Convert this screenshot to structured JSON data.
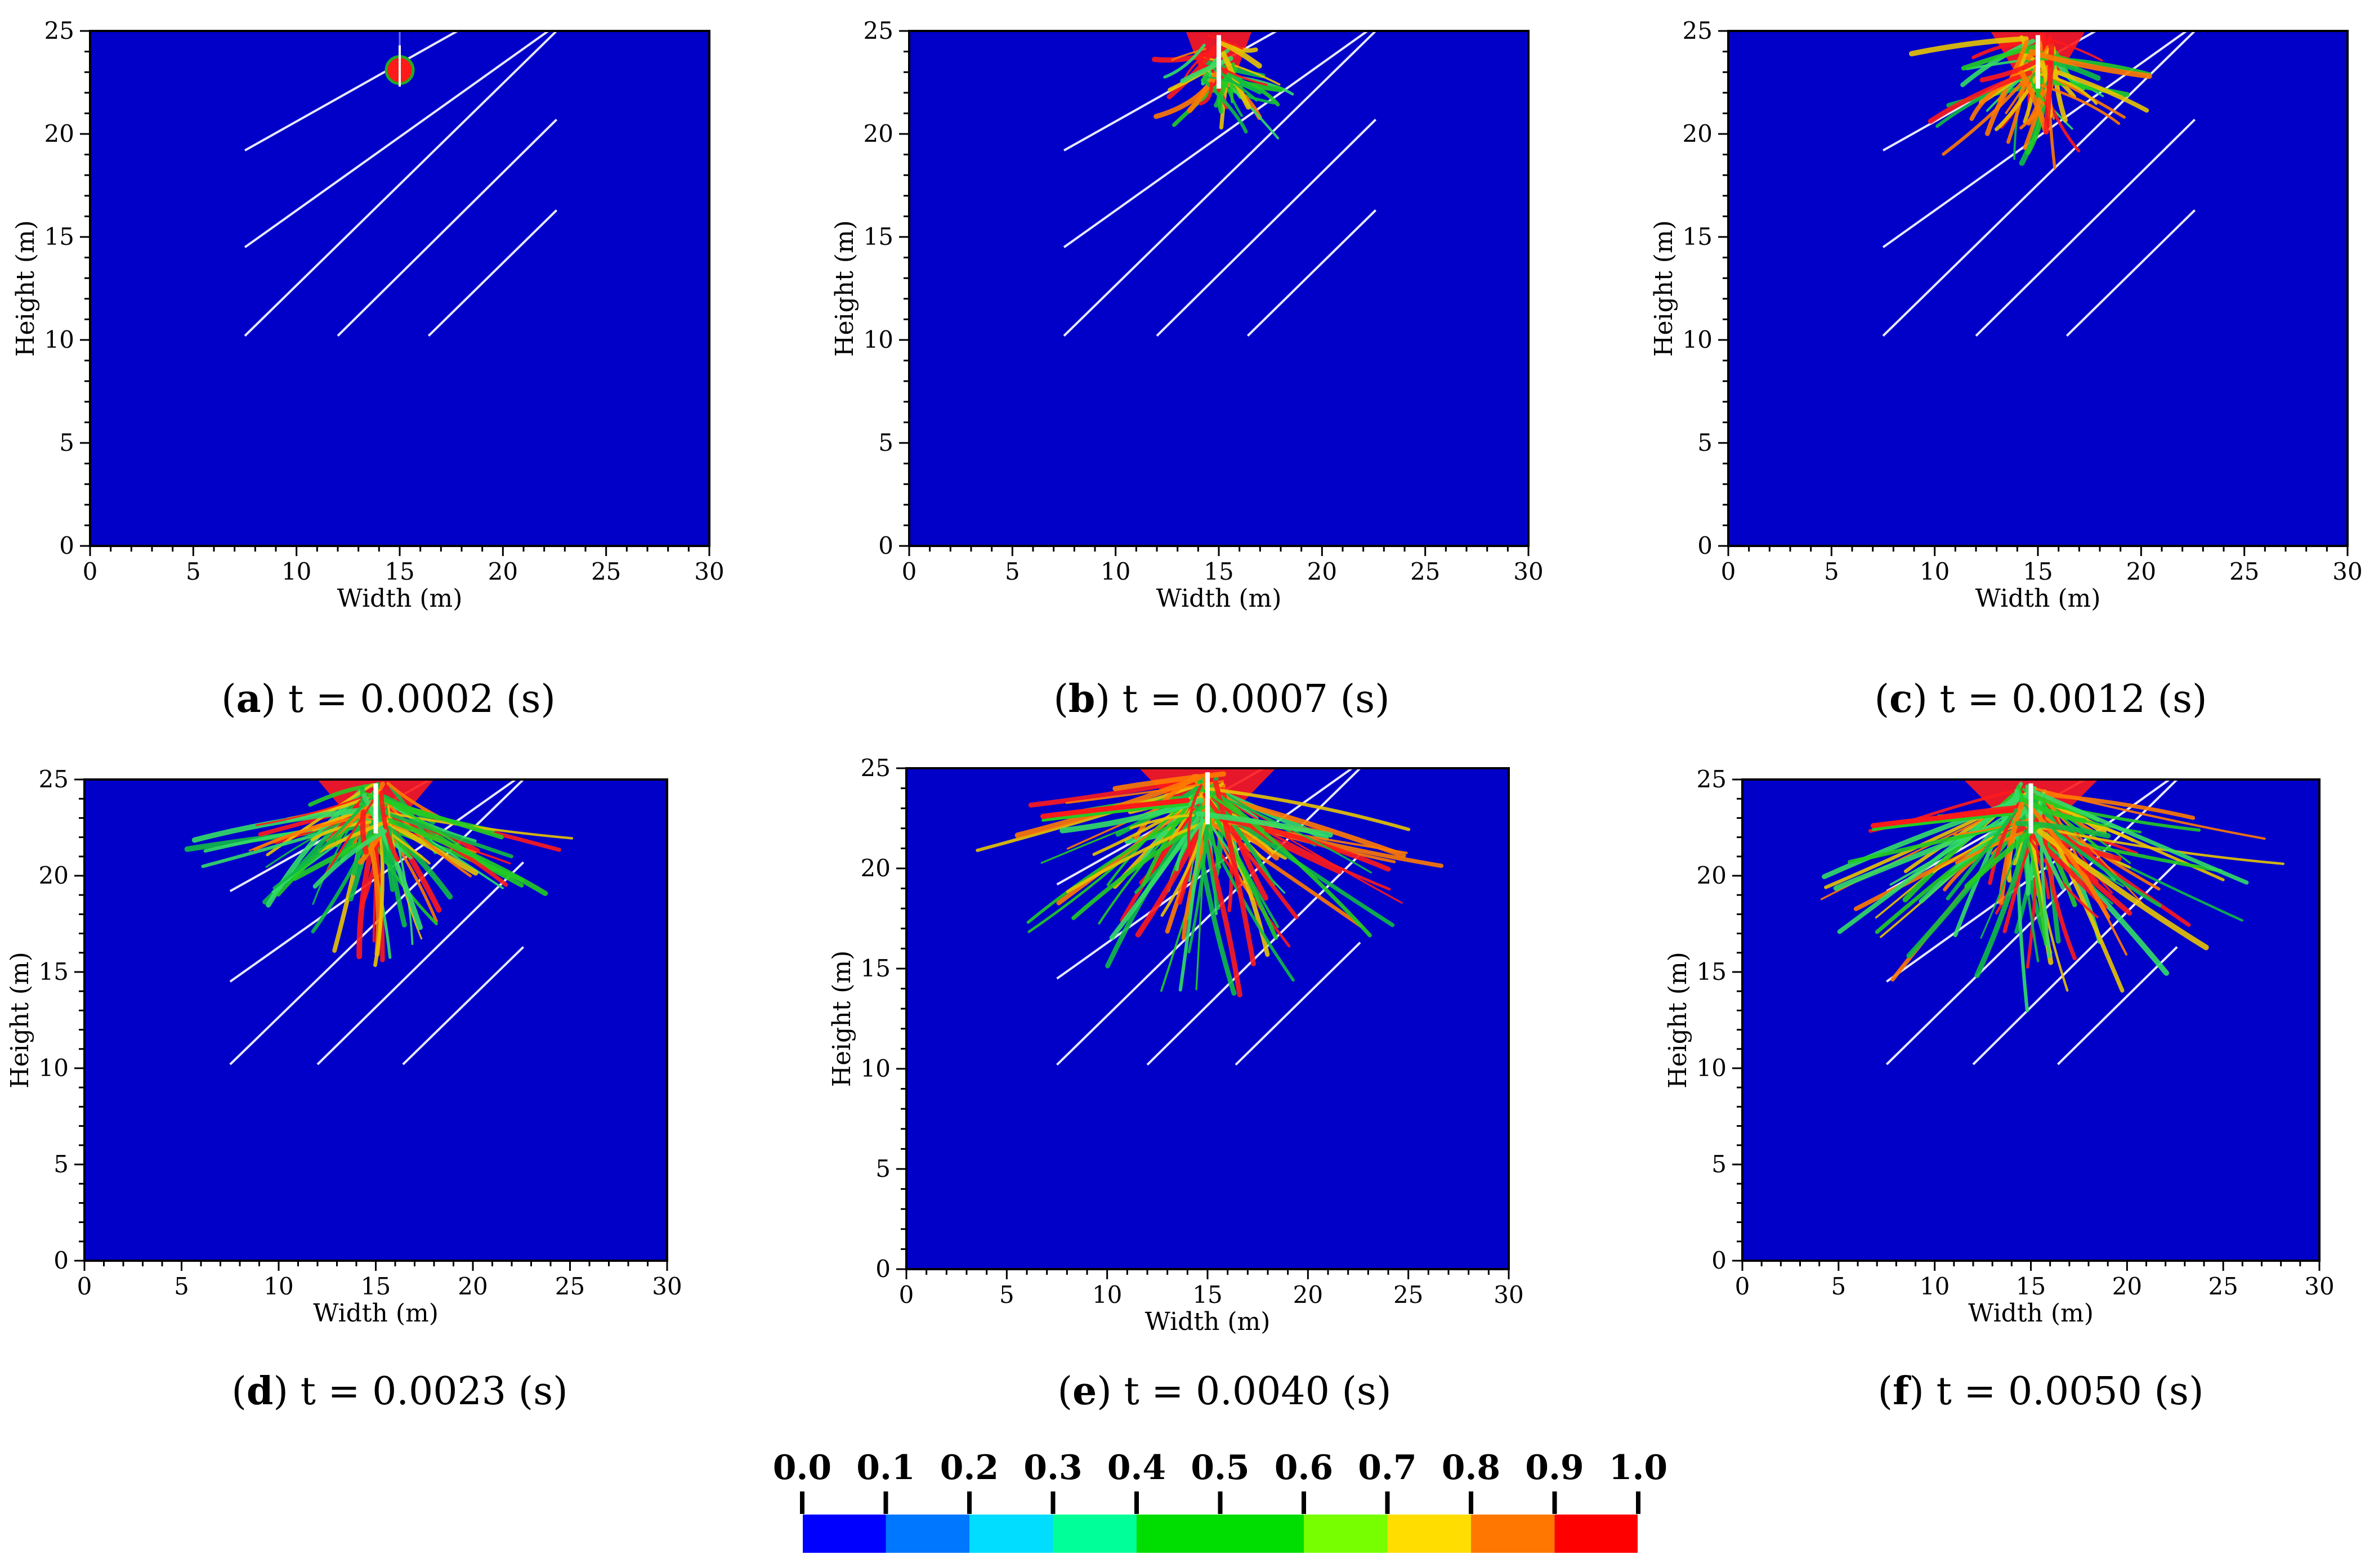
{
  "colors": {
    "background": "#0000c8",
    "crack_line": "#e8e8ff",
    "damage_red": "#ff1a1a",
    "damage_green": "#22cc22"
  },
  "chart_data": {
    "type": "heatmap",
    "shared": {
      "xlabel": "Width (m)",
      "ylabel": "Height (m)",
      "xlim": [
        0,
        30
      ],
      "ylim": [
        0,
        25
      ],
      "xticks": [
        0,
        5,
        10,
        15,
        20,
        25,
        30
      ],
      "yticks": [
        0,
        5,
        10,
        15,
        20,
        25
      ],
      "joints": [
        {
          "x1": 7.5,
          "y1": 19.2,
          "x2": 17.8,
          "y2": 25.0
        },
        {
          "x1": 7.5,
          "y1": 14.5,
          "x2": 22.2,
          "y2": 25.0
        },
        {
          "x1": 7.5,
          "y1": 10.2,
          "x2": 22.6,
          "y2": 25.0
        },
        {
          "x1": 12.0,
          "y1": 10.2,
          "x2": 22.6,
          "y2": 20.7
        },
        {
          "x1": 16.4,
          "y1": 10.2,
          "x2": 22.6,
          "y2": 16.3
        }
      ],
      "borehole": {
        "x": 15.0,
        "y_top": 25.0,
        "y_bottom": 22.0
      }
    },
    "panels": [
      {
        "label": "a",
        "title": "t = 0.0002 (s)",
        "stage": 0
      },
      {
        "label": "b",
        "title": "t = 0.0007 (s)",
        "stage": 1
      },
      {
        "label": "c",
        "title": "t = 0.0012 (s)",
        "stage": 2
      },
      {
        "label": "d",
        "title": "t = 0.0023 (s)",
        "stage": 3
      },
      {
        "label": "e",
        "title": "t = 0.0040 (s)",
        "stage": 4
      },
      {
        "label": "f",
        "title": "t = 0.0050 (s)",
        "stage": 5
      }
    ],
    "colorbar": {
      "ticks": [
        "0.0",
        "0.1",
        "0.2",
        "0.3",
        "0.4",
        "0.5",
        "0.6",
        "0.7",
        "0.8",
        "0.9",
        "1.0"
      ],
      "colors": [
        "#0000ff",
        "#0077ff",
        "#00ddff",
        "#00ff99",
        "#00dd00",
        "#00dd00",
        "#77ff00",
        "#ffdd00",
        "#ff7700",
        "#ff0000"
      ]
    }
  }
}
